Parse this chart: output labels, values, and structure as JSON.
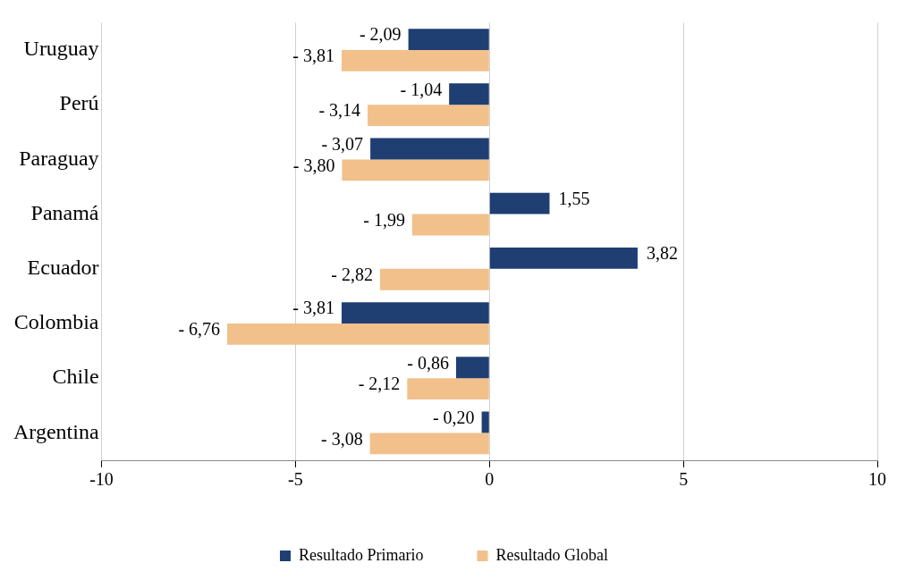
{
  "chart_data": {
    "type": "bar",
    "orientation": "horizontal",
    "categories": [
      "Uruguay",
      "Perú",
      "Paraguay",
      "Panamá",
      "Ecuador",
      "Colombia",
      "Chile",
      "Argentina"
    ],
    "series": [
      {
        "name": "Resultado Primario",
        "color": "#1f3f73",
        "values": [
          -2.09,
          -1.04,
          -3.07,
          1.55,
          3.82,
          -3.81,
          -0.86,
          -0.2
        ],
        "value_labels": [
          "- 2,09",
          "- 1,04",
          "- 3,07",
          "1,55",
          "3,82",
          "- 3,81",
          "- 0,86",
          "- 0,20"
        ]
      },
      {
        "name": "Resultado Global",
        "color": "#f2c08a",
        "values": [
          -3.81,
          -3.14,
          -3.8,
          -1.99,
          -2.82,
          -6.76,
          -2.12,
          -3.08
        ],
        "value_labels": [
          "- 3,81",
          "- 3,14",
          "- 3,80",
          "- 1,99",
          "- 2,82",
          "- 6,76",
          "- 2,12",
          "- 3,08"
        ]
      }
    ],
    "xlim": [
      -10,
      10
    ],
    "xticks": [
      -10,
      -5,
      0,
      5,
      10
    ],
    "grid": "x",
    "legend": "bottom"
  }
}
